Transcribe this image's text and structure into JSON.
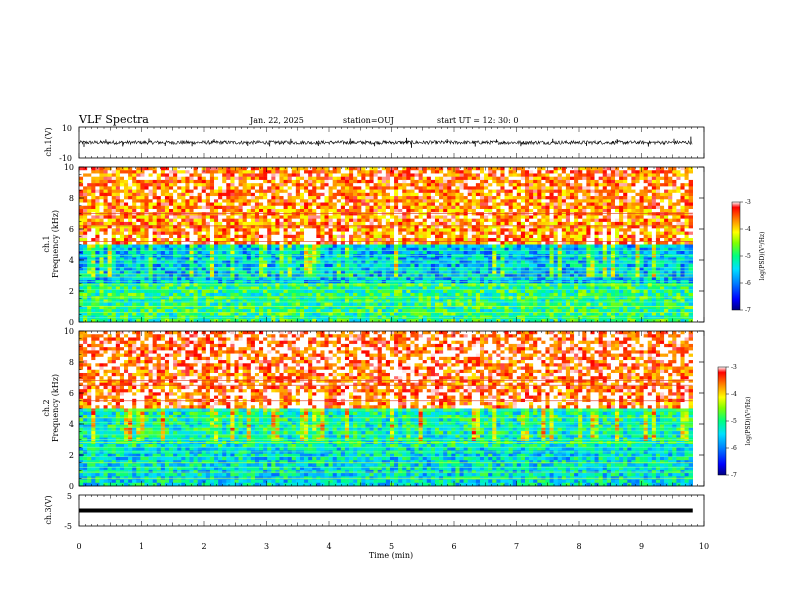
{
  "header": {
    "title": "VLF Spectra",
    "date": "Jan. 22, 2025",
    "station": "station=OUJ",
    "start": "start  UT =   12: 30: 0"
  },
  "chart_data": [
    {
      "type": "line",
      "panel": "ch1-waveform",
      "ylabel": "ch.1(V)",
      "ylim": [
        -10,
        10
      ],
      "yticks": [
        "10",
        "-10"
      ],
      "x_range_min": [
        0,
        10
      ],
      "data_extent_min": [
        0,
        9.82
      ],
      "baseline_v": 0,
      "noise_band_v": [
        -1.2,
        1.2
      ],
      "spikes": [
        {
          "x": 0.08,
          "y": -2.8
        },
        {
          "x": 0.43,
          "y": 2.0
        },
        {
          "x": 0.7,
          "y": -2.5
        },
        {
          "x": 1.12,
          "y": 2.6
        },
        {
          "x": 1.38,
          "y": -2.2
        },
        {
          "x": 1.81,
          "y": -2.4
        },
        {
          "x": 2.16,
          "y": 2.2
        },
        {
          "x": 2.7,
          "y": -2.2
        },
        {
          "x": 3.05,
          "y": -2.5
        },
        {
          "x": 3.39,
          "y": 2.4
        },
        {
          "x": 3.83,
          "y": -2.2
        },
        {
          "x": 4.34,
          "y": 2.6
        },
        {
          "x": 4.73,
          "y": -2.4
        },
        {
          "x": 5.24,
          "y": 3.0
        },
        {
          "x": 5.32,
          "y": -3.4
        },
        {
          "x": 5.89,
          "y": 2.2
        },
        {
          "x": 6.34,
          "y": -2.6
        },
        {
          "x": 6.68,
          "y": 2.0
        },
        {
          "x": 7.07,
          "y": -2.4
        },
        {
          "x": 7.58,
          "y": 2.4
        },
        {
          "x": 8.12,
          "y": -2.2
        },
        {
          "x": 8.61,
          "y": 2.2
        },
        {
          "x": 9.11,
          "y": -2.6
        },
        {
          "x": 9.52,
          "y": 2.4
        },
        {
          "x": 9.79,
          "y": 3.8
        }
      ]
    },
    {
      "type": "heatmap",
      "panel": "ch1-spectrogram",
      "ylabel_line1": "ch.1",
      "ylabel_line2": "Frequency  (kHz)",
      "ylim": [
        0,
        10
      ],
      "yticks": [
        0,
        2,
        4,
        6,
        8,
        10
      ],
      "data_extent_min": [
        0,
        9.82
      ],
      "colorscale": [
        "#000080",
        "#0000ff",
        "#0080ff",
        "#00e0ff",
        "#00ff80",
        "#80ff00",
        "#ffff00",
        "#ff8000",
        "#ff0000",
        "#ffffff"
      ],
      "colorbar": {
        "label": "log(PSD)(V²/Hz)",
        "range": [
          -7,
          -3
        ],
        "ticks": [
          "-3",
          "-4",
          "-5",
          "-6",
          "-7"
        ]
      },
      "structure": {
        "high_band_khz": [
          5,
          10
        ],
        "high_band_log_psd": -3.6,
        "mid_band_khz": [
          2.5,
          5
        ],
        "mid_band_log_psd": -5.6,
        "low_band_khz": [
          0,
          2.5
        ],
        "low_band_log_psd": -5.0,
        "narrowband_lines_khz": [
          0.3,
          0.6,
          1.0,
          1.3,
          1.6,
          2.1,
          2.4,
          2.6,
          2.9,
          3.1,
          3.3,
          3.5,
          3.8,
          4.0,
          4.3,
          4.6,
          5.2,
          6.2,
          7.0
        ]
      }
    },
    {
      "type": "heatmap",
      "panel": "ch2-spectrogram",
      "ylabel_line1": "ch.2",
      "ylabel_line2": "Frequency  (kHz)",
      "ylim": [
        0,
        10
      ],
      "yticks": [
        0,
        2,
        4,
        6,
        8,
        10
      ],
      "data_extent_min": [
        0,
        9.82
      ],
      "colorbar": {
        "label": "log(PSD)(V²/Hz)",
        "range": [
          -7,
          -3
        ],
        "ticks": [
          "-3",
          "-4",
          "-5",
          "-6",
          "-7"
        ]
      },
      "structure": {
        "high_band_khz": [
          5,
          10
        ],
        "high_band_log_psd": -3.4,
        "mid_band_khz": [
          2.5,
          5
        ],
        "mid_band_log_psd": -5.2,
        "low_band_khz": [
          0,
          2.5
        ],
        "low_band_log_psd": -5.4,
        "narrowband_lines_khz": [
          0.5,
          0.9,
          1.2,
          1.5,
          1.9,
          2.2,
          2.5,
          2.8,
          3.0,
          3.3,
          3.6,
          3.8,
          4.1,
          4.4,
          4.9,
          5.5,
          6.5,
          6.8
        ]
      }
    },
    {
      "type": "line",
      "panel": "ch3-waveform",
      "ylabel": "ch.3(V)",
      "ylim": [
        -5,
        5
      ],
      "yticks": [
        "5",
        "-5"
      ],
      "data_extent_min": [
        0,
        9.82
      ],
      "constant_v": 0
    }
  ],
  "xaxis": {
    "label": "Time  (min)",
    "range": [
      0,
      10
    ],
    "ticks": [
      "0",
      "1",
      "2",
      "3",
      "4",
      "5",
      "6",
      "7",
      "8",
      "9",
      "10"
    ]
  }
}
